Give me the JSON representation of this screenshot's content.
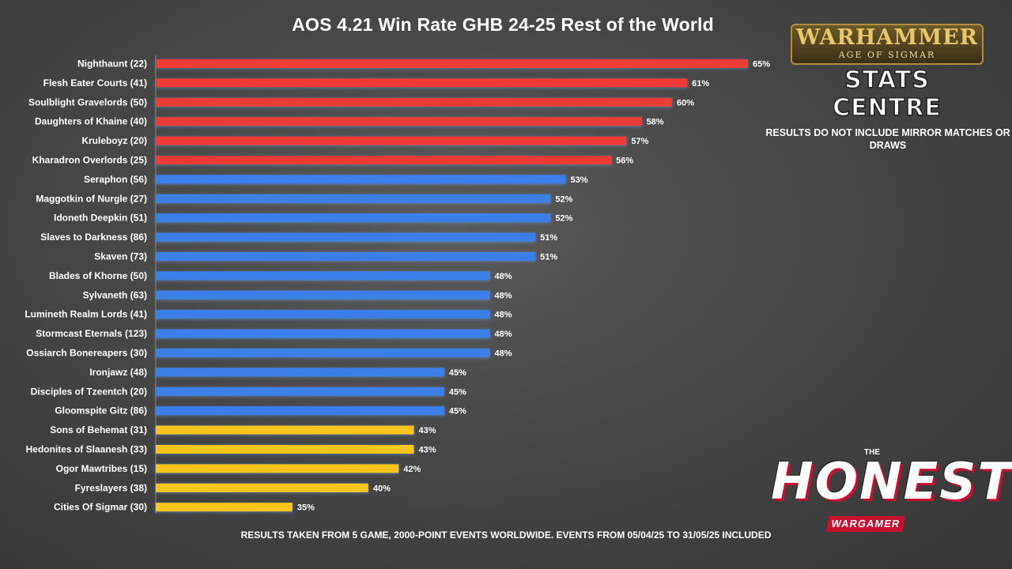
{
  "chart_data": {
    "type": "bar",
    "orientation": "horizontal",
    "title": "AOS 4.21 Win Rate GHB 24-25 Rest of the World",
    "categories": [
      "Nighthaunt (22)",
      "Flesh Eater Courts (41)",
      "Soulblight Gravelords (50)",
      "Daughters of Khaine (40)",
      "Kruleboyz (20)",
      "Kharadron Overlords (25)",
      "Seraphon (56)",
      "Maggotkin of Nurgle (27)",
      "Idoneth Deepkin (51)",
      "Slaves to Darkness (86)",
      "Skaven (73)",
      "Blades of Khorne (50)",
      "Sylvaneth (63)",
      "Lumineth Realm Lords (41)",
      "Stormcast Eternals (123)",
      "Ossiarch Bonereapers (30)",
      "Ironjawz (48)",
      "Disciples of Tzeentch (20)",
      "Gloomspite Gitz (86)",
      "Sons of Behemat (31)",
      "Hedonites of Slaanesh (33)",
      "Ogor Mawtribes (15)",
      "Fyreslayers (38)",
      "Cities Of Sigmar (30)"
    ],
    "values": [
      65,
      61,
      60,
      58,
      57,
      56,
      53,
      52,
      52,
      51,
      51,
      48,
      48,
      48,
      48,
      48,
      45,
      45,
      45,
      43,
      43,
      42,
      40,
      35
    ],
    "value_labels": [
      "65%",
      "61%",
      "60%",
      "58%",
      "57%",
      "56%",
      "53%",
      "52%",
      "52%",
      "51%",
      "51%",
      "48%",
      "48%",
      "48%",
      "48%",
      "48%",
      "45%",
      "45%",
      "45%",
      "43%",
      "43%",
      "42%",
      "40%",
      "35%"
    ],
    "bar_colors": [
      "#ef3b36",
      "#ef3b36",
      "#ef3b36",
      "#ef3b36",
      "#ef3b36",
      "#ef3b36",
      "#3d7fe8",
      "#3d7fe8",
      "#3d7fe8",
      "#3d7fe8",
      "#3d7fe8",
      "#3d7fe8",
      "#3d7fe8",
      "#3d7fe8",
      "#3d7fe8",
      "#3d7fe8",
      "#3d7fe8",
      "#3d7fe8",
      "#3d7fe8",
      "#f7c51a",
      "#f7c51a",
      "#f7c51a",
      "#f7c51a",
      "#f7c51a"
    ],
    "xlim": [
      26,
      65
    ],
    "grid": false,
    "legend": "none"
  },
  "note": "RESULTS DO NOT INCLUDE MIRROR MATCHES OR DRAWS",
  "footer": "RESULTS TAKEN FROM 5 GAME, 2000-POINT EVENTS WORLDWIDE. EVENTS FROM 05/04/25 TO 31/05/25 INCLUDED",
  "logos": {
    "warhammer_title": "WARHAMMER",
    "warhammer_subtitle": "AGE OF SIGMAR",
    "stats_centre": "STATS CENTRE",
    "honest_the": "THE",
    "honest_title": "HONEST",
    "honest_subtitle": "WARGAMER"
  },
  "colors": {
    "background": "#454545",
    "top_tier": "#ef3b36",
    "mid_tier": "#3d7fe8",
    "low_tier": "#f7c51a",
    "text": "#ffffff"
  }
}
